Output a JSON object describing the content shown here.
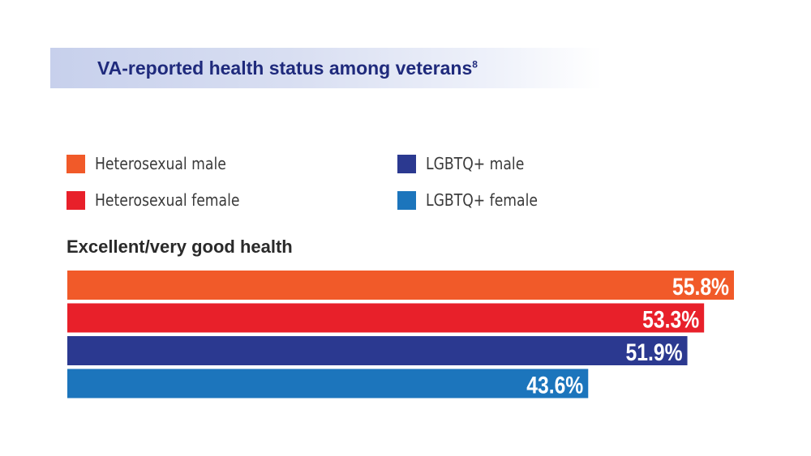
{
  "header": {
    "title": "VA-reported health status among veterans",
    "footnote": "8"
  },
  "colors": {
    "title_text": "#1f2a7c",
    "title_band": "#d1d8f0",
    "heterosexual_male": "#f15a29",
    "heterosexual_female": "#e8202a",
    "lgbtq_male": "#2b3990",
    "lgbtq_female": "#1c75bc"
  },
  "legend": [
    {
      "label": "Heterosexual male",
      "color": "#f15a29"
    },
    {
      "label": "Heterosexual female",
      "color": "#e8202a"
    },
    {
      "label": "LGBTQ+ male",
      "color": "#2b3990"
    },
    {
      "label": "LGBTQ+ female",
      "color": "#1c75bc"
    }
  ],
  "chart_data": {
    "type": "bar",
    "orientation": "horizontal",
    "title": "Excellent/very good health",
    "categories": [
      "Heterosexual male",
      "Heterosexual female",
      "LGBTQ+ male",
      "LGBTQ+ female"
    ],
    "values": [
      55.8,
      53.3,
      51.9,
      43.6
    ],
    "value_labels": [
      "55.8%",
      "53.3%",
      "51.9%",
      "43.6%"
    ],
    "colors": [
      "#f15a29",
      "#e8202a",
      "#2b3990",
      "#1c75bc"
    ],
    "unit": "%",
    "grid": false,
    "legend_position": "top"
  }
}
